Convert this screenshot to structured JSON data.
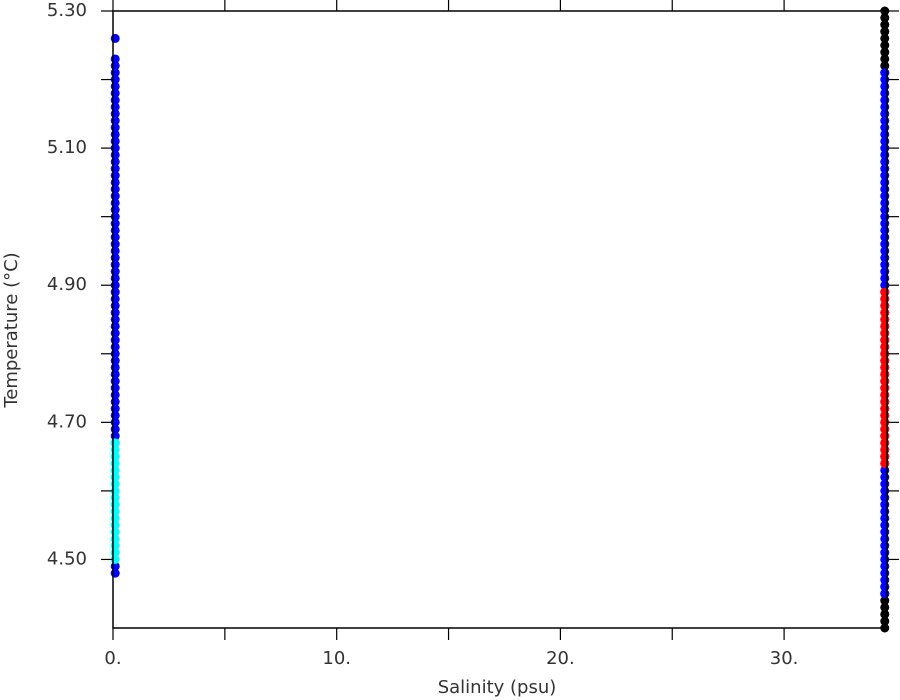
{
  "chart_data": {
    "type": "scatter",
    "xlabel": "Salinity (psu)",
    "ylabel": "Temperature (°C)",
    "xlim": [
      0,
      34.6
    ],
    "ylim": [
      4.4,
      5.3
    ],
    "xticks": [
      {
        "value": 0,
        "label": "0."
      },
      {
        "value": 10,
        "label": "10."
      },
      {
        "value": 20,
        "label": "20."
      },
      {
        "value": 30,
        "label": "30."
      }
    ],
    "xminorticks": [
      5,
      15,
      25
    ],
    "yticks": [
      {
        "value": 4.5,
        "label": "4.50"
      },
      {
        "value": 4.7,
        "label": "4.70"
      },
      {
        "value": 4.9,
        "label": "4.90"
      },
      {
        "value": 5.1,
        "label": "5.10"
      },
      {
        "value": 5.3,
        "label": "5.30"
      }
    ],
    "yminorticks": [
      4.6,
      4.8,
      5.0,
      5.2
    ],
    "series": [
      {
        "color": "#000000",
        "x": [
          34.5,
          34.5,
          34.5,
          34.5,
          34.5,
          34.5,
          34.5,
          34.5,
          34.5,
          34.5,
          34.5,
          34.5,
          34.5,
          34.5,
          34.5,
          34.5,
          34.5
        ],
        "values": [
          4.4,
          4.41,
          4.42,
          4.43,
          4.44,
          4.45,
          4.46,
          5.21,
          5.22,
          5.23,
          5.24,
          5.25,
          5.26,
          5.27,
          5.28,
          5.29,
          5.3
        ]
      },
      {
        "color": "#0000ff",
        "x": [
          34.5,
          34.5,
          34.5,
          34.5,
          34.5,
          34.5,
          34.5,
          34.5,
          34.5,
          34.5,
          34.5,
          34.5,
          34.5,
          34.5,
          34.5,
          34.5,
          34.5,
          34.5,
          34.5,
          34.5,
          34.5,
          34.5,
          34.5,
          34.5,
          34.5,
          34.5,
          34.5,
          34.5,
          34.5,
          34.5,
          34.5,
          34.5,
          34.5,
          34.5,
          34.5,
          34.5,
          34.5,
          34.5,
          34.5,
          34.5,
          34.5,
          34.5,
          34.5,
          34.5,
          34.5,
          34.5,
          34.5,
          34.5,
          34.5,
          34.5,
          34.5,
          34.5,
          34.5,
          34.5,
          34.5,
          34.5,
          34.5,
          34.5,
          34.5,
          34.5,
          34.5,
          34.5,
          34.5,
          34.5,
          34.5,
          34.5,
          34.5,
          34.5,
          34.5,
          34.5,
          34.5,
          34.5,
          34.5,
          34.5,
          34.5,
          34.5,
          34.5
        ],
        "values": [
          4.45,
          4.46,
          4.47,
          4.48,
          4.49,
          4.5,
          4.51,
          4.52,
          4.53,
          4.54,
          4.55,
          4.56,
          4.57,
          4.58,
          4.59,
          4.6,
          4.61,
          4.62,
          4.63,
          4.64,
          4.65,
          4.66,
          4.67,
          4.68,
          4.69,
          4.7,
          4.71,
          4.72,
          4.73,
          4.74,
          4.75,
          4.76,
          4.77,
          4.78,
          4.79,
          4.8,
          4.81,
          4.82,
          4.83,
          4.84,
          4.85,
          4.86,
          4.87,
          4.88,
          4.89,
          4.9,
          4.91,
          4.92,
          4.93,
          4.94,
          4.95,
          4.96,
          4.97,
          4.98,
          4.99,
          5.0,
          5.01,
          5.02,
          5.03,
          5.04,
          5.05,
          5.06,
          5.07,
          5.08,
          5.09,
          5.1,
          5.11,
          5.12,
          5.13,
          5.14,
          5.15,
          5.16,
          5.17,
          5.18,
          5.19,
          5.2,
          5.21
        ]
      },
      {
        "color": "#ff0000",
        "x": [
          34.5,
          34.5,
          34.5,
          34.5,
          34.5,
          34.5,
          34.5,
          34.5,
          34.5,
          34.5,
          34.5,
          34.5,
          34.5,
          34.5,
          34.5,
          34.5,
          34.5,
          34.5,
          34.5,
          34.5,
          34.5,
          34.5,
          34.5,
          34.5,
          34.5,
          34.5
        ],
        "values": [
          4.64,
          4.65,
          4.66,
          4.67,
          4.68,
          4.69,
          4.7,
          4.71,
          4.72,
          4.73,
          4.74,
          4.75,
          4.76,
          4.77,
          4.78,
          4.79,
          4.8,
          4.81,
          4.82,
          4.83,
          4.84,
          4.85,
          4.86,
          4.87,
          4.88,
          4.89
        ]
      },
      {
        "color": "#0000ff",
        "x": [
          0.1,
          0.1,
          0.1,
          0.1,
          0.1,
          0.1,
          0.1,
          0.1,
          0.1,
          0.1,
          0.1,
          0.1,
          0.1,
          0.1,
          0.1,
          0.1,
          0.1,
          0.1,
          0.1,
          0.1,
          0.1,
          0.1,
          0.1,
          0.1,
          0.1,
          0.1,
          0.1,
          0.1,
          0.1,
          0.1,
          0.1,
          0.1,
          0.1,
          0.1,
          0.1,
          0.1,
          0.1,
          0.1,
          0.1,
          0.1,
          0.1,
          0.1,
          0.1,
          0.1,
          0.1,
          0.1,
          0.1,
          0.1,
          0.1,
          0.1,
          0.1,
          0.1,
          0.1,
          0.1,
          0.1,
          0.1,
          0.1,
          0.1,
          0.1,
          0.1
        ],
        "values": [
          4.48,
          4.49,
          4.67,
          4.68,
          4.69,
          4.7,
          4.71,
          4.72,
          4.73,
          4.74,
          4.75,
          4.76,
          4.77,
          4.78,
          4.79,
          4.8,
          4.81,
          4.82,
          4.83,
          4.84,
          4.85,
          4.86,
          4.87,
          4.88,
          4.89,
          4.9,
          4.91,
          4.92,
          4.93,
          4.94,
          4.95,
          4.96,
          4.97,
          4.98,
          4.99,
          5.0,
          5.01,
          5.02,
          5.03,
          5.04,
          5.05,
          5.06,
          5.07,
          5.08,
          5.09,
          5.1,
          5.11,
          5.12,
          5.13,
          5.14,
          5.15,
          5.16,
          5.17,
          5.18,
          5.19,
          5.2,
          5.21,
          5.22,
          5.23,
          5.26
        ]
      },
      {
        "color": "#00ffff",
        "x": [
          0.1,
          0.1,
          0.1,
          0.1,
          0.1,
          0.1,
          0.1,
          0.1,
          0.1,
          0.1,
          0.1,
          0.1,
          0.1,
          0.1,
          0.1,
          0.1,
          0.1,
          0.1
        ],
        "values": [
          4.5,
          4.51,
          4.52,
          4.53,
          4.54,
          4.55,
          4.56,
          4.57,
          4.58,
          4.59,
          4.6,
          4.61,
          4.62,
          4.63,
          4.64,
          4.65,
          4.66,
          4.67
        ]
      }
    ]
  }
}
